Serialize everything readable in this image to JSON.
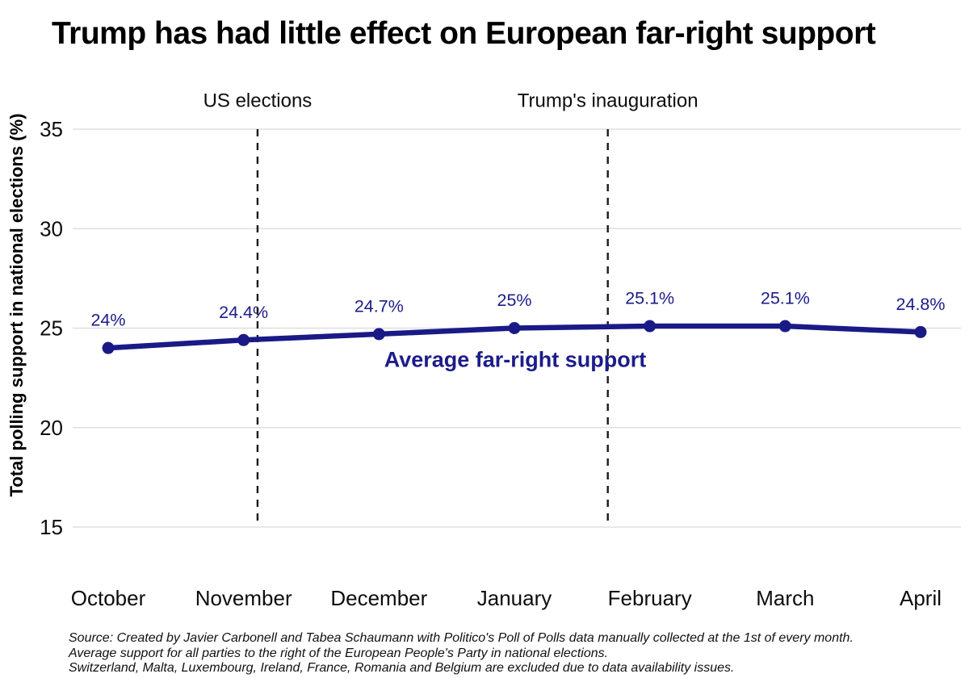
{
  "chart_data": {
    "type": "line",
    "title": "Trump has had little effect on European far-right support",
    "ylabel": "Total polling support in national elections (%)",
    "xlabel": "",
    "categories": [
      "October",
      "November",
      "December",
      "January",
      "February",
      "March",
      "April"
    ],
    "series": [
      {
        "name": "Average far-right support",
        "values": [
          24,
          24.4,
          24.7,
          25,
          25.1,
          25.1,
          24.8
        ],
        "point_labels": [
          "24%",
          "24.4%",
          "24.7%",
          "25%",
          "25.1%",
          "25.1%",
          "24.8%"
        ]
      }
    ],
    "series_label": "Average far-right support",
    "yticks": [
      15,
      20,
      25,
      30,
      35
    ],
    "ylim": [
      15,
      35
    ],
    "grid": "horizontal",
    "legend_position": "inline-annotation",
    "annotations": [
      {
        "label": "US elections",
        "x_index": 1.103
      },
      {
        "label": "Trump's inauguration",
        "x_index": 3.69
      }
    ],
    "colors": {
      "line": "#1a1a87",
      "label_text": "#1c1c8a",
      "grid": "#d9d9d9",
      "event_line": "#1a1a1a",
      "axis_text": "#0d0d0d"
    },
    "source_lines": [
      "Source: Created by Javier Carbonell and Tabea Schaumann with Politico's Poll of Polls data manually collected at the 1st of every month.",
      "Average support for all parties to the right of the European People's Party in national elections.",
      "Switzerland, Malta, Luxembourg, Ireland, France, Romania and Belgium are excluded due to data availability issues."
    ]
  }
}
